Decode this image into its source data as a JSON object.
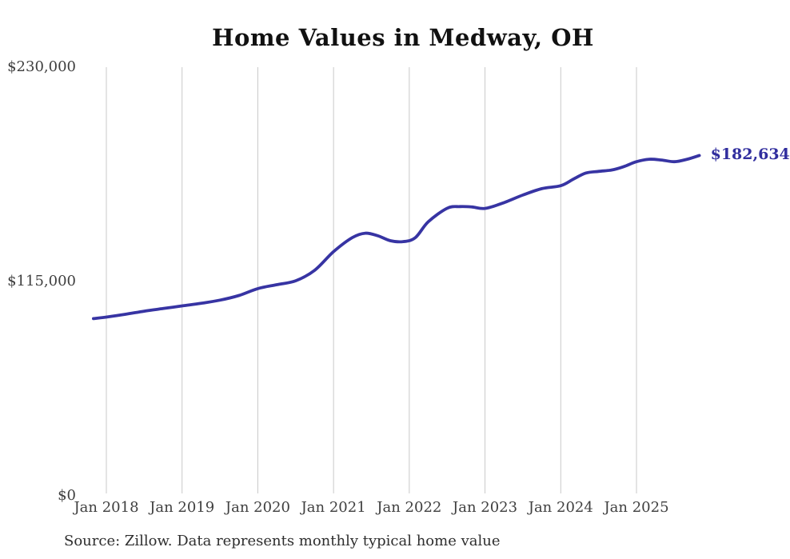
{
  "title": "Home Values in Medway, OH",
  "source_note": "Source: Zillow. Data represents monthly typical home value",
  "end_label": "$182,634",
  "colors": {
    "line": "#3734A3",
    "end_label": "#312E9E",
    "grid": "#C9C9C9",
    "title": "#111111",
    "tick_text": "#3F3F3F",
    "source_text": "#2E2E2E",
    "background": "#FFFFFF"
  },
  "chart_data": {
    "type": "line",
    "title": "Home Values in Medway, OH",
    "xlabel": "",
    "ylabel": "",
    "ylim": [
      0,
      230000
    ],
    "grid": "vertical-only",
    "legend": "none",
    "latest_value": 182634,
    "y_ticks": [
      {
        "label": "$230,000",
        "value": 230000
      },
      {
        "label": "$115,000",
        "value": 115000
      },
      {
        "label": "$0",
        "value": 0
      }
    ],
    "x_ticks": [
      {
        "label": "Jan 2018",
        "t": 2018
      },
      {
        "label": "Jan 2019",
        "t": 2019
      },
      {
        "label": "Jan 2020",
        "t": 2020
      },
      {
        "label": "Jan 2021",
        "t": 2021
      },
      {
        "label": "Jan 2022",
        "t": 2022
      },
      {
        "label": "Jan 2023",
        "t": 2023
      },
      {
        "label": "Jan 2024",
        "t": 2024
      },
      {
        "label": "Jan 2025",
        "t": 2025
      }
    ],
    "series": [
      {
        "name": "Monthly typical home value",
        "points": [
          [
            2017.83,
            95100
          ],
          [
            2018.0,
            95900
          ],
          [
            2018.25,
            97400
          ],
          [
            2018.5,
            99100
          ],
          [
            2018.75,
            100500
          ],
          [
            2019.0,
            101900
          ],
          [
            2019.25,
            103300
          ],
          [
            2019.5,
            105000
          ],
          [
            2019.75,
            107500
          ],
          [
            2020.0,
            111200
          ],
          [
            2020.25,
            113300
          ],
          [
            2020.5,
            115400
          ],
          [
            2020.75,
            121000
          ],
          [
            2021.0,
            131000
          ],
          [
            2021.25,
            138600
          ],
          [
            2021.42,
            140900
          ],
          [
            2021.58,
            139600
          ],
          [
            2021.75,
            136900
          ],
          [
            2021.92,
            136400
          ],
          [
            2022.08,
            138500
          ],
          [
            2022.25,
            147000
          ],
          [
            2022.5,
            154300
          ],
          [
            2022.67,
            155200
          ],
          [
            2022.83,
            155000
          ],
          [
            2023.0,
            154200
          ],
          [
            2023.25,
            157300
          ],
          [
            2023.5,
            161400
          ],
          [
            2023.75,
            164800
          ],
          [
            2024.0,
            166400
          ],
          [
            2024.17,
            170000
          ],
          [
            2024.33,
            173200
          ],
          [
            2024.5,
            174100
          ],
          [
            2024.67,
            174800
          ],
          [
            2024.83,
            176600
          ],
          [
            2025.0,
            179300
          ],
          [
            2025.17,
            180600
          ],
          [
            2025.33,
            180200
          ],
          [
            2025.5,
            179300
          ],
          [
            2025.67,
            180600
          ],
          [
            2025.83,
            182634
          ]
        ]
      }
    ]
  }
}
